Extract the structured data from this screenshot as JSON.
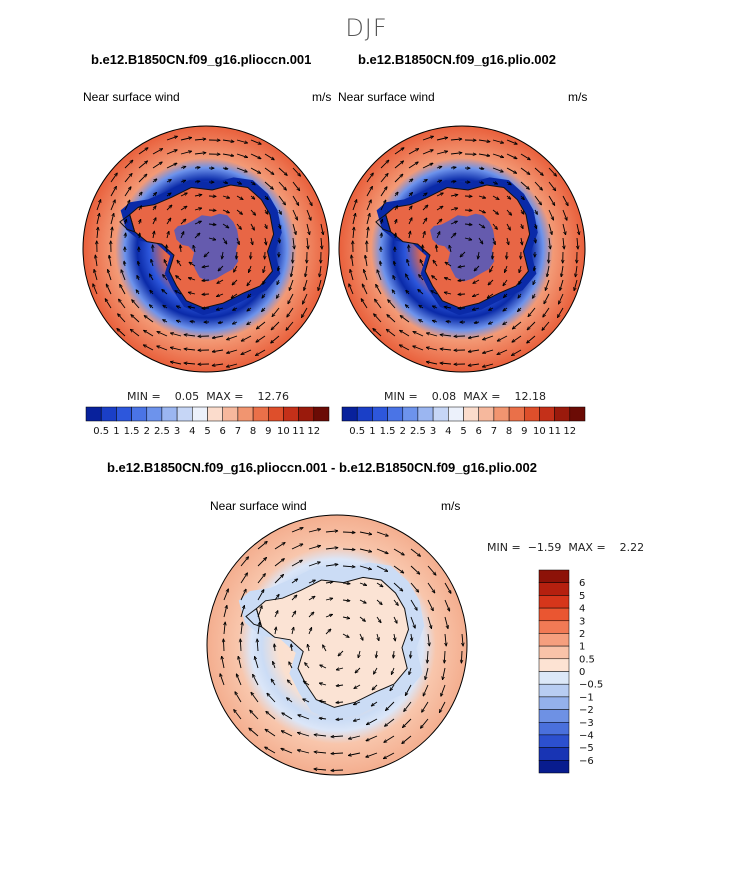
{
  "season": "DJF",
  "panels": [
    {
      "title": "b.e12.B1850CN.f09_g16.plioccn.001",
      "variable": "Near surface wind",
      "units": "m/s",
      "min_label": "MIN =",
      "min_value": "0.05",
      "max_label": "MAX =",
      "max_value": "12.76",
      "palette": "blue-red"
    },
    {
      "title": "b.e12.B1850CN.f09_g16.plio.002",
      "variable": "Near surface wind",
      "units": "m/s",
      "min_label": "MIN =",
      "min_value": "0.08",
      "max_label": "MAX =",
      "max_value": "12.18",
      "palette": "blue-red"
    }
  ],
  "diff_panel": {
    "title": "b.e12.B1850CN.f09_g16.plioccn.001 - b.e12.B1850CN.f09_g16.plio.002",
    "variable": "Near surface wind",
    "units": "m/s",
    "min_label": "MIN =",
    "min_value": "−1.59",
    "max_label": "MAX =",
    "max_value": "2.22"
  },
  "colorbar_top": {
    "labels": [
      "0.5",
      "1",
      "1.5",
      "2",
      "2.5",
      "3",
      "4",
      "5",
      "6",
      "7",
      "8",
      "9",
      "10",
      "11",
      "12"
    ],
    "colors": [
      "#08219c",
      "#1a3fc7",
      "#2d57dc",
      "#4a74e6",
      "#6d93ec",
      "#9bb6f1",
      "#c6d6f6",
      "#ecf1fb",
      "#fbdccc",
      "#f6b89d",
      "#f19570",
      "#ea7049",
      "#de4f2b",
      "#c43019",
      "#9a1a0c",
      "#6b0b05"
    ]
  },
  "colorbar_diff": {
    "labels": [
      "6",
      "5",
      "4",
      "3",
      "2",
      "1",
      "0.5",
      "0",
      "−0.5",
      "−1",
      "−2",
      "−3",
      "−4",
      "−5",
      "−6"
    ],
    "colors": [
      "#8d1208",
      "#b5200f",
      "#d6361b",
      "#ea5631",
      "#f17a55",
      "#f59f7e",
      "#f9c3a9",
      "#fde3d3",
      "#dce8f8",
      "#b8cdf2",
      "#94b1ec",
      "#6e91e4",
      "#4a70dc",
      "#2c50cf",
      "#1834b4",
      "#081c8e"
    ]
  },
  "map_colors": {
    "ocean_strong": "#ec6a45",
    "ocean_mid": "#f39a76",
    "jet_low": "#2d57dc",
    "jet_core": "#0a2aa8",
    "land_high": "#e86645",
    "diff_positive": "#f7bca1",
    "diff_light": "#fbe3d4",
    "diff_negative": "#cbdcf5",
    "coast": "#111111"
  }
}
